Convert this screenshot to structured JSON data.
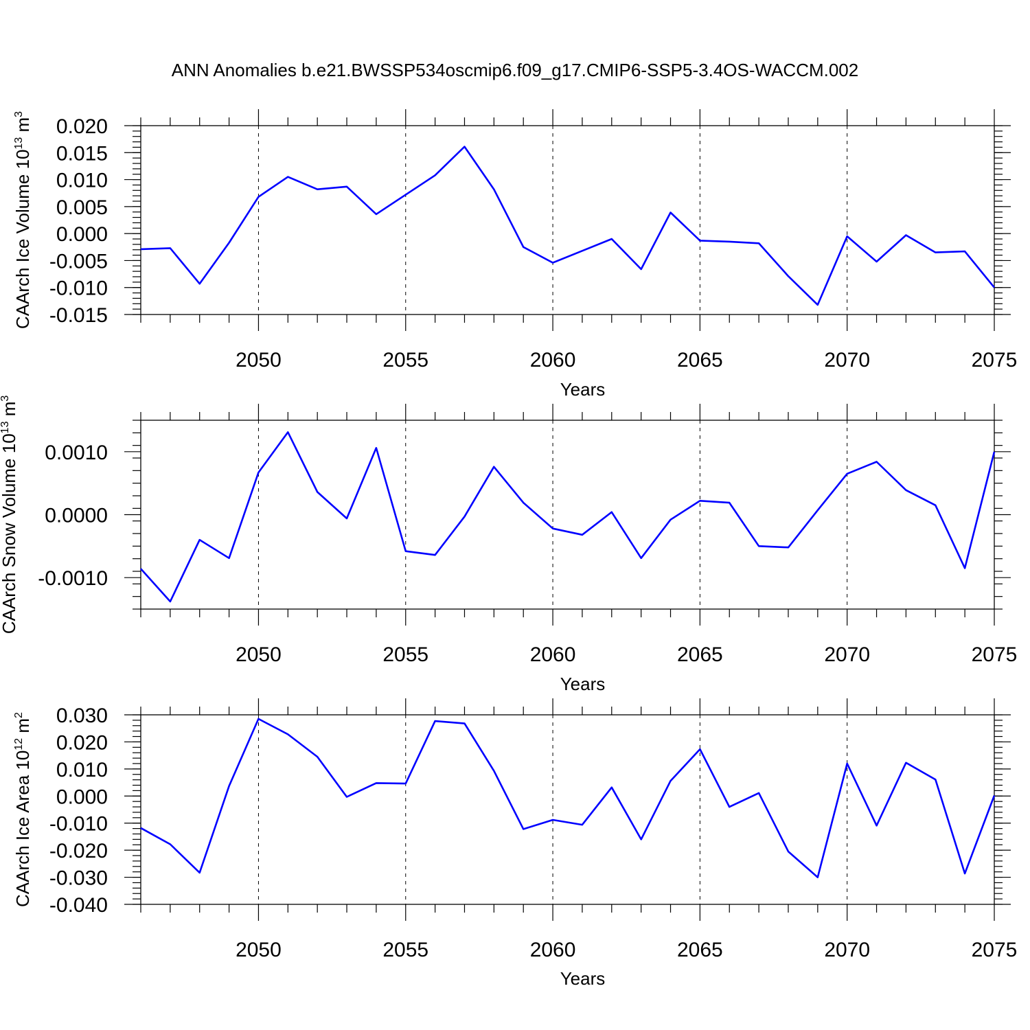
{
  "title": "ANN Anomalies b.e21.BWSSP534oscmip6.f09_g17.CMIP6-SSP5-3.4OS-WACCM.002",
  "line_color": "#0000ff",
  "chart_data": [
    {
      "type": "line",
      "ylabel_main": "CAArch Ice Volume 10",
      "ylabel_exp": "13",
      "ylabel_unit": " m",
      "ylabel_unit_exp": "3",
      "xlabel": "Years",
      "xlim": [
        2046,
        2075
      ],
      "ylim": [
        -0.015,
        0.02
      ],
      "x_ticks": [
        2050,
        2055,
        2060,
        2065,
        2070,
        2075
      ],
      "x_tick_labels": [
        "2050",
        "2055",
        "2060",
        "2065",
        "2070",
        "2075"
      ],
      "y_ticks": [
        -0.015,
        -0.01,
        -0.005,
        0.0,
        0.005,
        0.01,
        0.015,
        0.02
      ],
      "y_tick_labels": [
        "-0.015",
        "-0.010",
        "-0.005",
        "0.000",
        "0.005",
        "0.010",
        "0.015",
        "0.020"
      ],
      "y_minor_step": 0.001,
      "grid": "vertical dashed at major x ticks",
      "x": [
        2046,
        2047,
        2048,
        2049,
        2050,
        2051,
        2052,
        2053,
        2054,
        2055,
        2056,
        2057,
        2058,
        2059,
        2060,
        2061,
        2062,
        2063,
        2064,
        2065,
        2066,
        2067,
        2068,
        2069,
        2070,
        2071,
        2072,
        2073,
        2074,
        2075
      ],
      "y": [
        -0.0029,
        -0.0027,
        -0.0093,
        -0.0017,
        0.0068,
        0.0105,
        0.0082,
        0.0087,
        0.0036,
        0.0072,
        0.0108,
        0.0161,
        0.0082,
        -0.0025,
        -0.0054,
        -0.0032,
        -0.001,
        -0.0066,
        0.0039,
        -0.0013,
        -0.0015,
        -0.0018,
        -0.0079,
        -0.0132,
        -0.0005,
        -0.0052,
        -0.0003,
        -0.0035,
        -0.0033,
        -0.01
      ]
    },
    {
      "type": "line",
      "ylabel_main": "CAArch Snow Volume 10",
      "ylabel_exp": "13",
      "ylabel_unit": " m",
      "ylabel_unit_exp": "3",
      "xlabel": "Years",
      "xlim": [
        2046,
        2075
      ],
      "ylim": [
        -0.0015,
        0.0015
      ],
      "x_ticks": [
        2050,
        2055,
        2060,
        2065,
        2070,
        2075
      ],
      "x_tick_labels": [
        "2050",
        "2055",
        "2060",
        "2065",
        "2070",
        "2075"
      ],
      "y_ticks": [
        -0.001,
        0.0,
        0.001
      ],
      "y_tick_labels": [
        "-0.0010",
        "0.0000",
        "0.0010"
      ],
      "y_minor_step": 0.0002,
      "grid": "vertical dashed at major x ticks",
      "x": [
        2046,
        2047,
        2048,
        2049,
        2050,
        2051,
        2052,
        2053,
        2054,
        2055,
        2056,
        2057,
        2058,
        2059,
        2060,
        2061,
        2062,
        2063,
        2064,
        2065,
        2066,
        2067,
        2068,
        2069,
        2070,
        2071,
        2072,
        2073,
        2074,
        2075
      ],
      "y": [
        -0.00086,
        -0.00138,
        -0.0004,
        -0.00069,
        0.00067,
        0.00131,
        0.00036,
        -6e-05,
        0.00106,
        -0.00058,
        -0.00064,
        -3e-05,
        0.00076,
        0.00019,
        -0.00022,
        -0.00032,
        4e-05,
        -0.00069,
        -8e-05,
        0.00022,
        0.00019,
        -0.0005,
        -0.00052,
        7e-05,
        0.00065,
        0.00084,
        0.00039,
        0.00015,
        -0.00085,
        0.001
      ]
    },
    {
      "type": "line",
      "ylabel_main": "CAArch Ice Area 10",
      "ylabel_exp": "12",
      "ylabel_unit": " m",
      "ylabel_unit_exp": "2",
      "xlabel": "Years",
      "xlim": [
        2046,
        2075
      ],
      "ylim": [
        -0.04,
        0.03
      ],
      "x_ticks": [
        2050,
        2055,
        2060,
        2065,
        2070,
        2075
      ],
      "x_tick_labels": [
        "2050",
        "2055",
        "2060",
        "2065",
        "2070",
        "2075"
      ],
      "y_ticks": [
        -0.04,
        -0.03,
        -0.02,
        -0.01,
        0.0,
        0.01,
        0.02,
        0.03
      ],
      "y_tick_labels": [
        "-0.040",
        "-0.030",
        "-0.020",
        "-0.010",
        "0.000",
        "0.010",
        "0.020",
        "0.030"
      ],
      "y_minor_step": 0.002,
      "grid": "vertical dashed at major x ticks",
      "x": [
        2046,
        2047,
        2048,
        2049,
        2050,
        2051,
        2052,
        2053,
        2054,
        2055,
        2056,
        2057,
        2058,
        2059,
        2060,
        2061,
        2062,
        2063,
        2064,
        2065,
        2066,
        2067,
        2068,
        2069,
        2070,
        2071,
        2072,
        2073,
        2074,
        2075
      ],
      "y": [
        -0.0118,
        -0.0178,
        -0.0283,
        0.0037,
        0.0285,
        0.0228,
        0.0145,
        -0.0003,
        0.0048,
        0.0046,
        0.0277,
        0.0268,
        0.0093,
        -0.0122,
        -0.0088,
        -0.0106,
        0.0032,
        -0.016,
        0.0056,
        0.0173,
        -0.004,
        0.0011,
        -0.0205,
        -0.03,
        0.012,
        -0.0109,
        0.0123,
        0.0061,
        -0.0286,
        0.0002
      ]
    }
  ]
}
